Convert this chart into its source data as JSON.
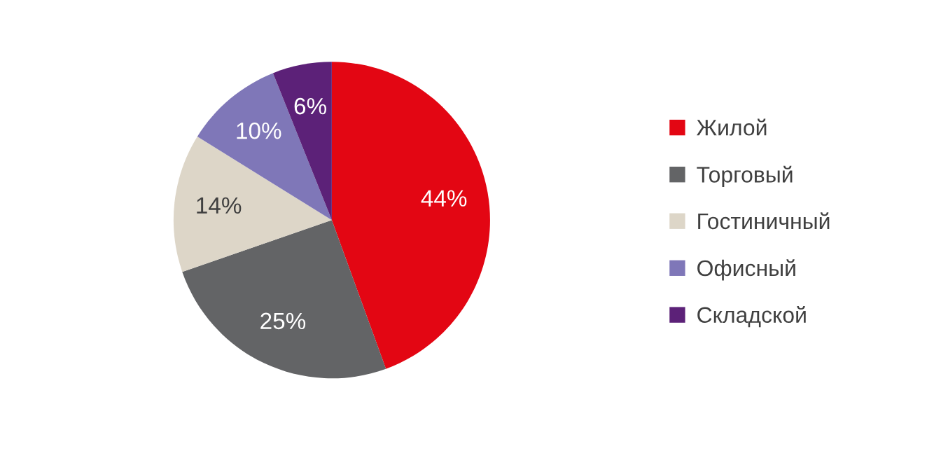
{
  "chart_data": {
    "type": "pie",
    "categories": [
      "Жилой",
      "Торговый",
      "Гостиничный",
      "Офисный",
      "Складской"
    ],
    "values": [
      44,
      25,
      14,
      10,
      6
    ],
    "colors": [
      "#e30613",
      "#636466",
      "#ddd6c8",
      "#7f77b8",
      "#5c2178"
    ],
    "value_labels": [
      "44%",
      "25%",
      "14%",
      "10%",
      "6%"
    ],
    "legend": "right"
  }
}
